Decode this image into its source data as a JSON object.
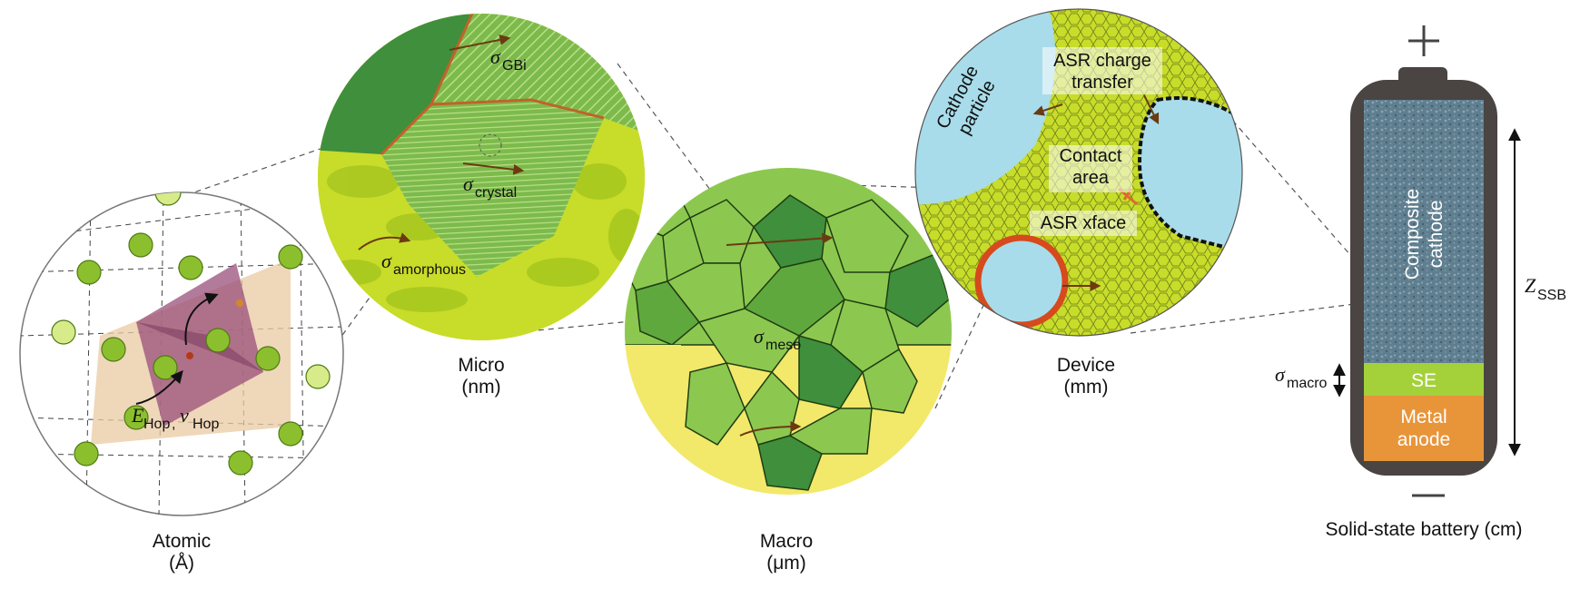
{
  "scales": {
    "atomic": {
      "name": "Atomic",
      "unit": "(Å)"
    },
    "micro": {
      "name": "Micro",
      "unit": "(nm)"
    },
    "macro": {
      "name": "Macro",
      "unit": "(μm)"
    },
    "device": {
      "name": "Device",
      "unit": "(mm)"
    },
    "battery": {
      "name": "Solid-state battery (cm)"
    }
  },
  "atomic_labels": {
    "e_sym": "E",
    "e_sub": "Hop",
    "comma": ",",
    "nu_sym": "ν",
    "nu_sub": "Hop"
  },
  "micro_labels": {
    "gb_sym": "σ",
    "gb_sub": "GBi",
    "crystal_sym": "σ",
    "crystal_sub": "crystal",
    "amorphous_sym": "σ",
    "amorphous_sub": "amorphous"
  },
  "macro_labels": {
    "meso_sym": "σ",
    "meso_sub": "meso"
  },
  "device_labels": {
    "cathode_line1": "Cathode",
    "cathode_line2": "particle",
    "asr_ct_line1": "ASR charge",
    "asr_ct_line2": "transfer",
    "contact_line1": "Contact",
    "contact_line2": "area",
    "asr_xface": "ASR xface"
  },
  "battery": {
    "plus": "+",
    "minus": "−",
    "cathode_line1": "Composite",
    "cathode_line2": "cathode",
    "se": "SE",
    "anode_line1": "Metal",
    "anode_line2": "anode",
    "macro_sym": "σ",
    "macro_sub": "macro",
    "z_sym": "Z",
    "z_sub": "SSB"
  },
  "colors": {
    "dark_green": "#3f8f3c",
    "grain_green": "#8cc850",
    "lime": "#c8dc2a",
    "yellow": "#f2e86a",
    "cathode_blue": "#a8dcea",
    "interface_red": "#d64a1e",
    "battery_case": "#4a4442",
    "cathode_fill": "#5f7f90",
    "se_green": "#a4d13a",
    "anode_orange": "#e8953a",
    "arrow_brown": "#6b3a12",
    "polyhedron_purple": "#9a4f7a",
    "polyhedron_tan": "#e9c9a3"
  }
}
